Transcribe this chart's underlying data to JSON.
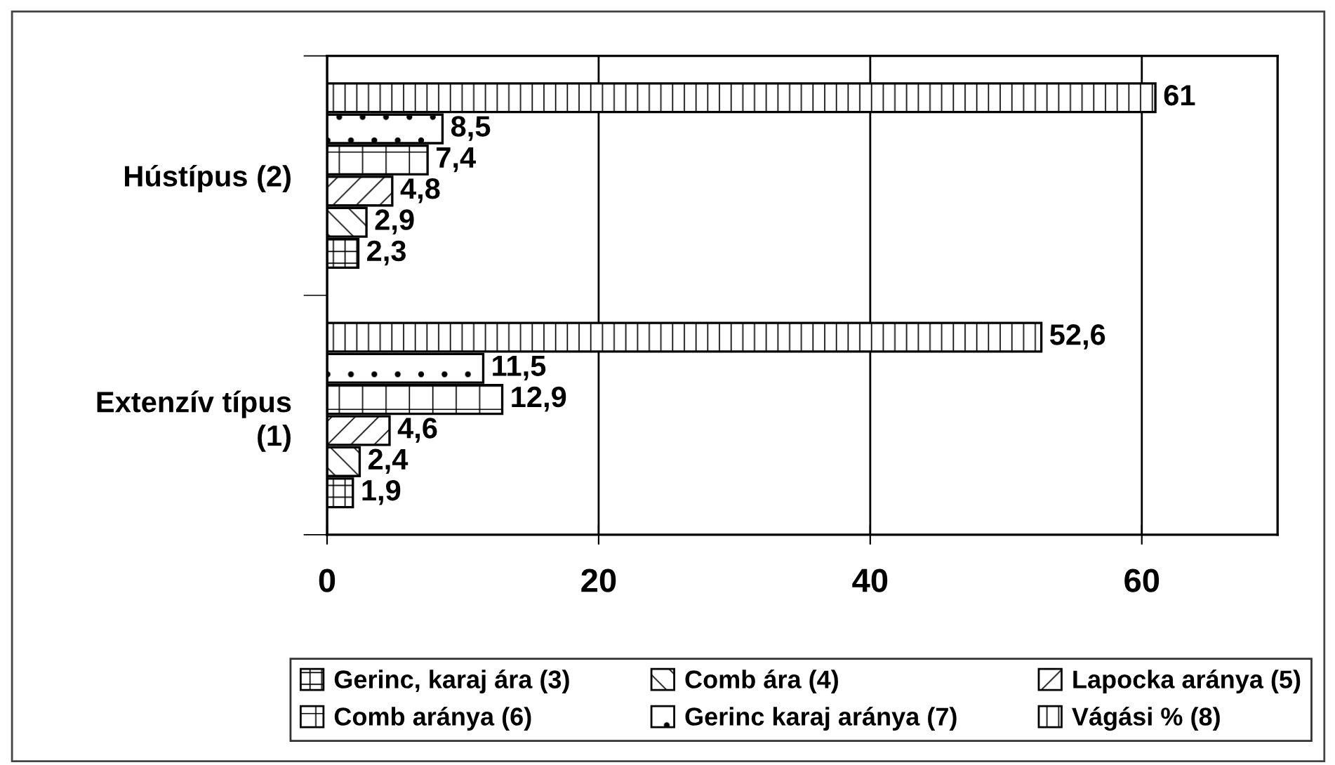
{
  "chart_data": {
    "type": "bar",
    "orientation": "horizontal",
    "categories": [
      "Hústípus (2)",
      "Extenzív típus\n(1)"
    ],
    "series": [
      {
        "name": "Gerinc, karaj ára (3)",
        "color": "#000000",
        "values": [
          2.3,
          1.9
        ],
        "value_labels": [
          "2,3",
          "1,9"
        ]
      },
      {
        "name": "Comb ára (4)",
        "color": "#000000",
        "values": [
          2.9,
          2.4
        ],
        "value_labels": [
          "2,9",
          "2,4"
        ]
      },
      {
        "name": "Lapocka aránya (5)",
        "color": "#000000",
        "values": [
          4.8,
          4.6
        ],
        "value_labels": [
          "4,8",
          "4,6"
        ]
      },
      {
        "name": "Comb aránya (6)",
        "color": "#000000",
        "values": [
          7.4,
          12.9
        ],
        "value_labels": [
          "7,4",
          "12,9"
        ]
      },
      {
        "name": "Gerinc karaj aránya (7)",
        "color": "#000000",
        "values": [
          8.5,
          11.5
        ],
        "value_labels": [
          "8,5",
          "11,5"
        ]
      },
      {
        "name": "Vágási % (8)",
        "color": "#000000",
        "values": [
          61,
          52.6
        ],
        "value_labels": [
          "61",
          "52,6"
        ]
      }
    ],
    "xlim": [
      0,
      70
    ],
    "xticks": [
      0,
      20,
      40,
      60
    ],
    "grid": "x",
    "legend": "bottom"
  }
}
